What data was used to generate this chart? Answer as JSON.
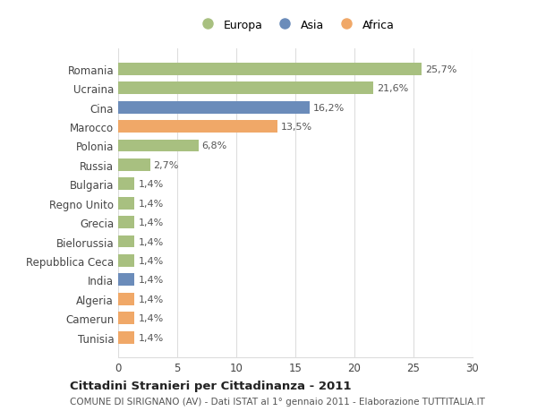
{
  "categories": [
    "Tunisia",
    "Camerun",
    "Algeria",
    "India",
    "Repubblica Ceca",
    "Bielorussia",
    "Grecia",
    "Regno Unito",
    "Bulgaria",
    "Russia",
    "Polonia",
    "Marocco",
    "Cina",
    "Ucraina",
    "Romania"
  ],
  "values": [
    1.4,
    1.4,
    1.4,
    1.4,
    1.4,
    1.4,
    1.4,
    1.4,
    1.4,
    2.7,
    6.8,
    13.5,
    16.2,
    21.6,
    25.7
  ],
  "colors": [
    "#f0a868",
    "#f0a868",
    "#f0a868",
    "#6b8cba",
    "#a8c080",
    "#a8c080",
    "#a8c080",
    "#a8c080",
    "#a8c080",
    "#a8c080",
    "#a8c080",
    "#f0a868",
    "#6b8cba",
    "#a8c080",
    "#a8c080"
  ],
  "labels": [
    "1,4%",
    "1,4%",
    "1,4%",
    "1,4%",
    "1,4%",
    "1,4%",
    "1,4%",
    "1,4%",
    "1,4%",
    "2,7%",
    "6,8%",
    "13,5%",
    "16,2%",
    "21,6%",
    "25,7%"
  ],
  "xlim": [
    0,
    30
  ],
  "xticks": [
    0,
    5,
    10,
    15,
    20,
    25,
    30
  ],
  "legend": [
    {
      "label": "Europa",
      "color": "#a8c080"
    },
    {
      "label": "Asia",
      "color": "#6b8cba"
    },
    {
      "label": "Africa",
      "color": "#f0a868"
    }
  ],
  "title": "Cittadini Stranieri per Cittadinanza - 2011",
  "subtitle": "COMUNE DI SIRIGNANO (AV) - Dati ISTAT al 1° gennaio 2011 - Elaborazione TUTTITALIA.IT",
  "background_color": "#ffffff",
  "grid_color": "#dddddd",
  "bar_height": 0.65
}
